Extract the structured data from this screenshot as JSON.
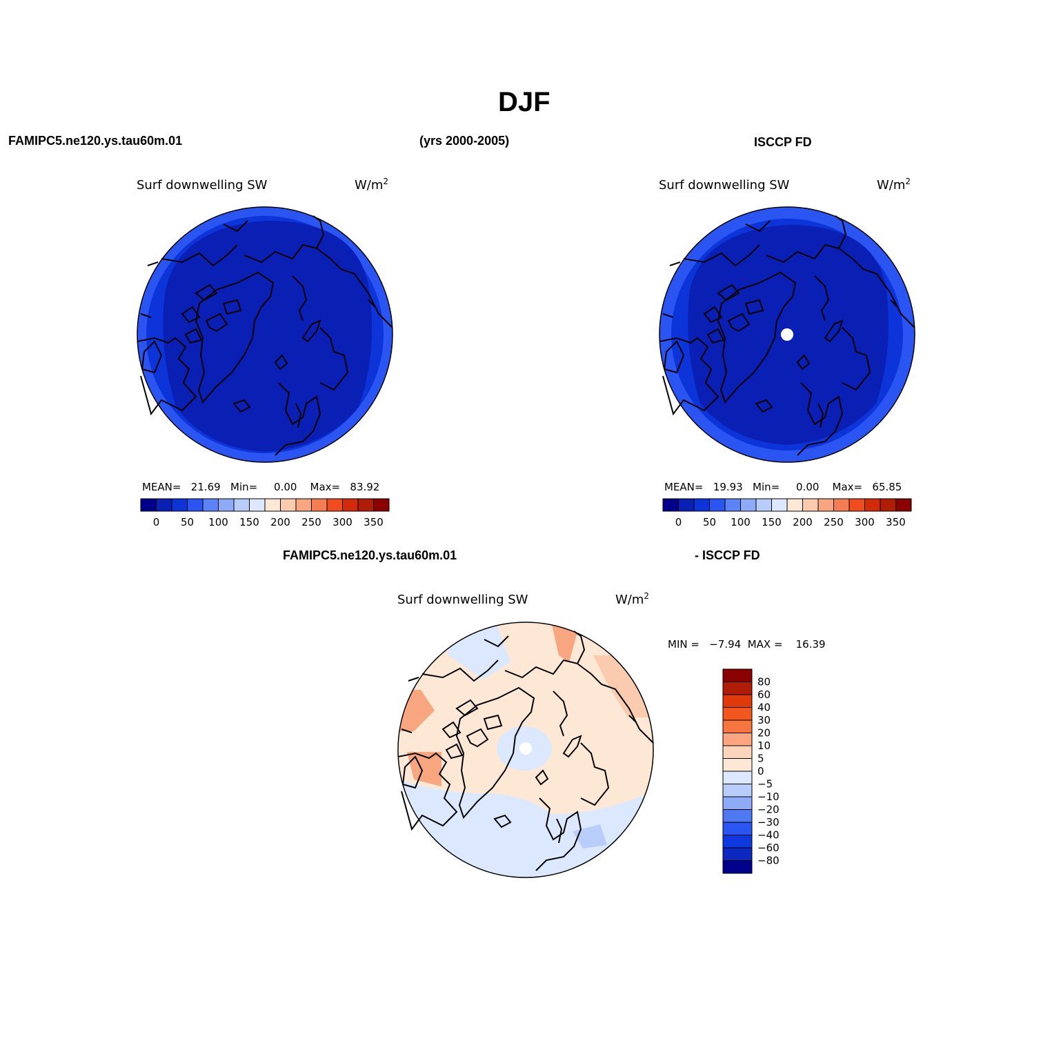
{
  "figure": {
    "title": "DJF",
    "header_left": "FAMIPC5.ne120.ys.tau60m.01",
    "header_center": "(yrs 2000-2005)",
    "header_right": "ISCCP FD",
    "diff_header_left": "FAMIPC5.ne120.ys.tau60m.01",
    "diff_header_right": "- ISCCP FD"
  },
  "panels": [
    {
      "variable": "Surf downwelling SW",
      "units": "W/m",
      "units_sup": "2",
      "stats": "MEAN=   21.69   Min=     0.00    Max=   83.92",
      "mean": 21.69,
      "min": 0.0,
      "max": 83.92
    },
    {
      "variable": "Surf downwelling SW",
      "units": "W/m",
      "units_sup": "2",
      "stats": "MEAN=   19.93   Min=     0.00    Max=   65.85",
      "mean": 19.93,
      "min": 0.0,
      "max": 65.85
    },
    {
      "variable": "Surf downwelling SW",
      "units": "W/m",
      "units_sup": "2",
      "stats": "MIN =   −7.94  MAX =    16.39",
      "min": -7.94,
      "max": 16.39
    }
  ],
  "colorbar_h": {
    "colors": [
      "#00008b",
      "#0a1fb4",
      "#0d34d9",
      "#2a55f2",
      "#5b82f7",
      "#8fabf8",
      "#b9cdfb",
      "#dbe8fd",
      "#fde8d6",
      "#fbcbb0",
      "#f8a680",
      "#f57d52",
      "#f04c1e",
      "#d12b09",
      "#b01c06",
      "#8b0000"
    ],
    "labels": [
      "0",
      "50",
      "100",
      "150",
      "200",
      "250",
      "300",
      "350"
    ]
  },
  "colorbar_v": {
    "colors": [
      "#8b0000",
      "#b01c06",
      "#e03a0c",
      "#f3561f",
      "#f77640",
      "#fba680",
      "#fdd5bc",
      "#fde8d6",
      "#dbe8fd",
      "#b9cdfb",
      "#8fabf8",
      "#4f78f3",
      "#2a55f2",
      "#1038e0",
      "#0d28c0",
      "#00008b"
    ],
    "labels": [
      "80",
      "60",
      "40",
      "30",
      "20",
      "10",
      "5",
      "0",
      "−5",
      "−10",
      "−20",
      "−30",
      "−40",
      "−60",
      "−80"
    ]
  }
}
